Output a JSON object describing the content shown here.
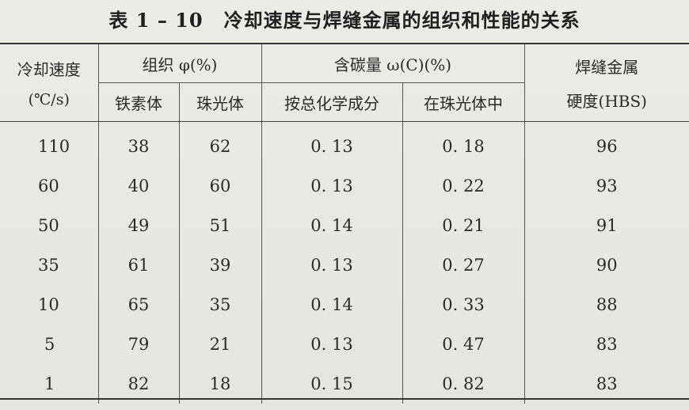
{
  "title": {
    "number": "表 1 – 10",
    "text": "冷却速度与焊缝金属的组织和性能的关系"
  },
  "headers": {
    "cooling_speed": "冷却速度",
    "cooling_unit": "(℃/s)",
    "structure": "组织 φ(%)",
    "ferrite": "铁素体",
    "pearlite": "珠光体",
    "carbon": "含碳量 ω(C)(%)",
    "carbon_total": "按总化学成分",
    "carbon_pearlite": "在珠光体中",
    "hardness": "焊缝金属",
    "hardness_unit": "硬度(HBS)"
  },
  "rows": [
    {
      "speed": "110",
      "ferrite": "38",
      "pearlite": "62",
      "c_total": "0. 13",
      "c_pearlite": "0. 18",
      "hbs": "96"
    },
    {
      "speed": "60",
      "ferrite": "40",
      "pearlite": "60",
      "c_total": "0. 13",
      "c_pearlite": "0. 22",
      "hbs": "93"
    },
    {
      "speed": "50",
      "ferrite": "49",
      "pearlite": "51",
      "c_total": "0. 14",
      "c_pearlite": "0. 21",
      "hbs": "91"
    },
    {
      "speed": "35",
      "ferrite": "61",
      "pearlite": "39",
      "c_total": "0. 13",
      "c_pearlite": "0. 27",
      "hbs": "90"
    },
    {
      "speed": "10",
      "ferrite": "65",
      "pearlite": "35",
      "c_total": "0. 14",
      "c_pearlite": "0. 33",
      "hbs": "88"
    },
    {
      "speed": "5",
      "ferrite": "79",
      "pearlite": "21",
      "c_total": "0. 13",
      "c_pearlite": "0. 47",
      "hbs": "83"
    },
    {
      "speed": "1",
      "ferrite": "82",
      "pearlite": "18",
      "c_total": "0. 15",
      "c_pearlite": "0. 82",
      "hbs": "83"
    }
  ]
}
